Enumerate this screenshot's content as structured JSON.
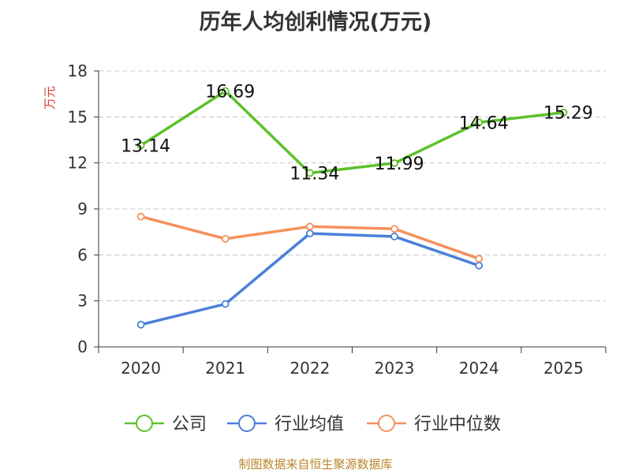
{
  "chart_data": {
    "type": "line",
    "title": "历年人均创利情况(万元)",
    "ylabel": "万元",
    "xlabel": "",
    "categories": [
      "2020",
      "2021",
      "2022",
      "2023",
      "2024",
      "2025"
    ],
    "ylim": [
      0,
      18
    ],
    "yticks": [
      0,
      3,
      6,
      9,
      12,
      15,
      18
    ],
    "grid": true,
    "legend_position": "bottom",
    "series": [
      {
        "name": "公司",
        "color": "#5cc12a",
        "values": [
          13.14,
          16.69,
          11.34,
          11.99,
          14.64,
          15.29
        ],
        "show_labels": true
      },
      {
        "name": "行业均值",
        "color": "#4a80d8",
        "values": [
          1.45,
          2.8,
          7.4,
          7.2,
          5.3,
          null
        ],
        "show_labels": false
      },
      {
        "name": "行业中位数",
        "color": "#f5915c",
        "values": [
          8.5,
          7.05,
          7.85,
          7.7,
          5.75,
          null
        ],
        "show_labels": false
      }
    ]
  },
  "footer": "制图数据来自恒生聚源数据库"
}
